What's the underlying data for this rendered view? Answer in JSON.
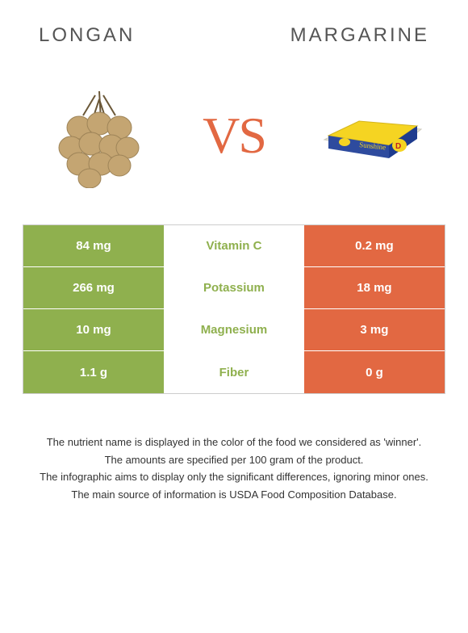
{
  "header": {
    "left_title": "LONGAN",
    "right_title": "Margarine"
  },
  "vs": "VS",
  "colors": {
    "left_bg": "#8fb04e",
    "right_bg": "#e26842",
    "left_text": "#8fb04e",
    "right_text": "#e26842",
    "longan_fruit": "#c4a572",
    "longan_shadow": "#9e8458",
    "longan_stem": "#6b5838",
    "margarine_box": "#2e4b9e",
    "margarine_yellow": "#f5d422",
    "margarine_wrap": "#e8e5d8"
  },
  "nutrients": [
    {
      "label": "Vitamin C",
      "left": "84 mg",
      "right": "0.2 mg",
      "winner": "left"
    },
    {
      "label": "Potassium",
      "left": "266 mg",
      "right": "18 mg",
      "winner": "left"
    },
    {
      "label": "Magnesium",
      "left": "10 mg",
      "right": "3 mg",
      "winner": "left"
    },
    {
      "label": "Fiber",
      "left": "1.1 g",
      "right": "0 g",
      "winner": "left"
    }
  ],
  "footer": {
    "line1": "The nutrient name is displayed in the color of the food we considered as 'winner'.",
    "line2": "The amounts are specified per 100 gram of the product.",
    "line3": "The infographic aims to display only the significant differences, ignoring minor ones.",
    "line4": "The main source of information is USDA Food Composition Database."
  }
}
